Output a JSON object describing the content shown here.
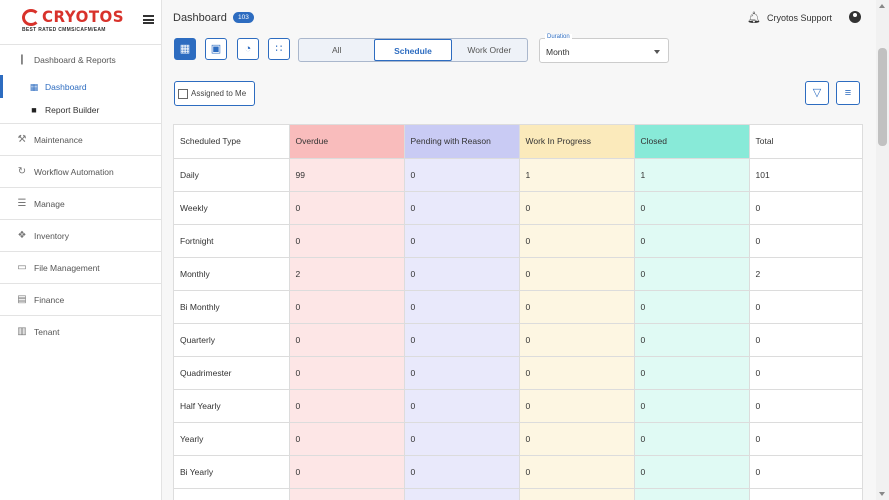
{
  "brand": {
    "name": "CRYOTOS",
    "tagline": "BEST RATED CMMS/CAFM/EAM"
  },
  "sidebar": {
    "dashboard_reports": {
      "label": "Dashboard & Reports",
      "items": [
        {
          "label": "Dashboard"
        },
        {
          "label": "Report Builder"
        }
      ]
    },
    "items": [
      {
        "label": "Maintenance",
        "icon": "tools-icon"
      },
      {
        "label": "Workflow Automation",
        "icon": "workflow-icon"
      },
      {
        "label": "Manage",
        "icon": "cart-icon"
      },
      {
        "label": "Inventory",
        "icon": "boxes-icon"
      },
      {
        "label": "File Management",
        "icon": "folder-icon"
      },
      {
        "label": "Finance",
        "icon": "finance-icon"
      },
      {
        "label": "Tenant",
        "icon": "building-icon"
      }
    ]
  },
  "header": {
    "title": "Dashboard",
    "badge": "103",
    "user": "Cryotos Support"
  },
  "toolbar": {
    "segments": [
      "All",
      "Schedule",
      "Work Order"
    ],
    "selected_segment": "Schedule",
    "duration_label": "Duration",
    "duration_value": "Month",
    "assigned_label": "Assigned to Me"
  },
  "table": {
    "headers": [
      "Scheduled Type",
      "Overdue",
      "Pending with Reason",
      "Work In Progress",
      "Closed",
      "Total"
    ],
    "rows": [
      [
        "Daily",
        "99",
        "0",
        "1",
        "1",
        "101"
      ],
      [
        "Weekly",
        "0",
        "0",
        "0",
        "0",
        "0"
      ],
      [
        "Fortnight",
        "0",
        "0",
        "0",
        "0",
        "0"
      ],
      [
        "Monthly",
        "2",
        "0",
        "0",
        "0",
        "2"
      ],
      [
        "Bi Monthly",
        "0",
        "0",
        "0",
        "0",
        "0"
      ],
      [
        "Quarterly",
        "0",
        "0",
        "0",
        "0",
        "0"
      ],
      [
        "Quadrimester",
        "0",
        "0",
        "0",
        "0",
        "0"
      ],
      [
        "Half Yearly",
        "0",
        "0",
        "0",
        "0",
        "0"
      ],
      [
        "Yearly",
        "0",
        "0",
        "0",
        "0",
        "0"
      ],
      [
        "Bi Yearly",
        "0",
        "0",
        "0",
        "0",
        "0"
      ],
      [
        "",
        "",
        "",
        "",
        "",
        ""
      ]
    ]
  },
  "colors": {
    "accent": "#2d6cc0",
    "brand": "#d8322b",
    "overdue_header": "#f9bcbc",
    "pending_header": "#c9cbf4",
    "wip_header": "#fbeabb",
    "closed_header": "#88ead8"
  }
}
